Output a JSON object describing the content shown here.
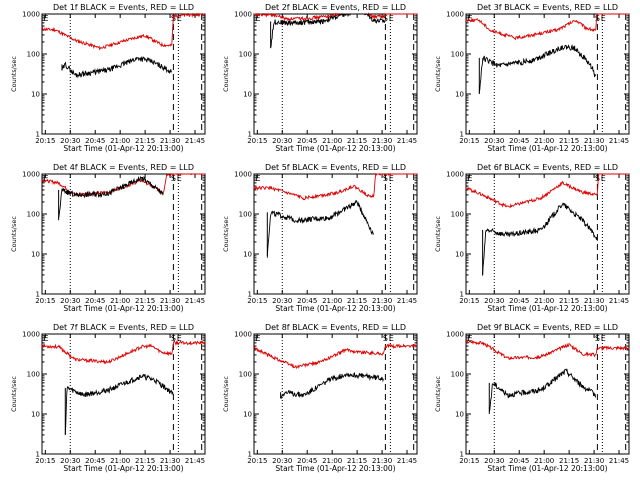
{
  "chart_data": [
    {
      "type": "line",
      "detector": "1f",
      "title": "Det 1f BLACK = Events, RED = LLD",
      "xlabel": "Start Time (01-Apr-12 20:13:00)",
      "ylabel": "Counts/sec",
      "yscale": "log",
      "ylim": [
        1,
        1000
      ],
      "yticks": [
        "1",
        "10",
        "100",
        "1000"
      ],
      "xticks": [
        "20:15",
        "20:30",
        "20:45",
        "21:00",
        "21:15",
        "21:30",
        "21:45"
      ],
      "markers": [
        "S",
        "E"
      ],
      "series": [
        {
          "name": "Events",
          "color": "#000000",
          "x_min": [
            20.4,
            20.5,
            21.0,
            21.25,
            21.33
          ],
          "y": [
            13,
            55,
            30,
            80,
            40
          ]
        },
        {
          "name": "LLD",
          "color": "#dd0000",
          "x_min": [
            0,
            10,
            35,
            60,
            70,
            78,
            80,
            82,
            90
          ],
          "y": [
            420,
            320,
            130,
            280,
            160,
            900,
            1000,
            1000,
            1000
          ]
        }
      ]
    },
    {
      "type": "line",
      "detector": "2f",
      "title": "Det 2f BLACK = Events, RED = LLD",
      "xlabel": "Start Time (01-Apr-12 20:13:00)",
      "ylabel": "Counts/sec",
      "yscale": "log",
      "ylim": [
        1,
        1000
      ],
      "yticks": [
        "1",
        "10",
        "100",
        "1000"
      ],
      "xticks": [
        "20:15",
        "20:30",
        "20:45",
        "21:00",
        "21:15",
        "21:30",
        "21:45"
      ],
      "markers": [
        "S",
        "E"
      ]
    },
    {
      "type": "line",
      "detector": "3f",
      "title": "Det 3f BLACK = Events, RED = LLD",
      "xlabel": "Start Time (01-Apr-12 20:13:00)",
      "ylabel": "Counts/sec",
      "yscale": "log",
      "ylim": [
        1,
        1000
      ],
      "yticks": [
        "1",
        "10",
        "100",
        "1000"
      ],
      "xticks": [
        "20:15",
        "20:30",
        "20:45",
        "21:00",
        "21:15",
        "21:30",
        "21:45"
      ],
      "markers": [
        "S",
        "E"
      ]
    },
    {
      "type": "line",
      "detector": "4f",
      "title": "Det 4f BLACK = Events, RED = LLD",
      "xlabel": "Start Time (01-Apr-12 20:13:00)",
      "ylabel": "Counts/sec",
      "yscale": "log",
      "ylim": [
        1,
        1000
      ],
      "yticks": [
        "1",
        "10",
        "100",
        "1000"
      ],
      "xticks": [
        "20:15",
        "20:30",
        "20:45",
        "21:00",
        "21:15",
        "21:30",
        "21:45"
      ],
      "markers": [
        "S",
        "E"
      ]
    },
    {
      "type": "line",
      "detector": "5f",
      "title": "Det 5f BLACK = Events, RED = LLD",
      "xlabel": "Start Time (01-Apr-12 20:13:00)",
      "ylabel": "Counts/sec",
      "yscale": "log",
      "ylim": [
        1,
        1000
      ],
      "yticks": [
        "1",
        "10",
        "100",
        "1000"
      ],
      "xticks": [
        "20:15",
        "20:30",
        "20:45",
        "21:00",
        "21:15",
        "21:30",
        "21:45"
      ],
      "markers": [
        "S",
        "E"
      ]
    },
    {
      "type": "line",
      "detector": "6f",
      "title": "Det 6f BLACK = Events, RED = LLD",
      "xlabel": "Start Time (01-Apr-12 20:13:00)",
      "ylabel": "Counts/sec",
      "yscale": "log",
      "ylim": [
        1,
        1000
      ],
      "yticks": [
        "1",
        "10",
        "100",
        "1000"
      ],
      "xticks": [
        "20:15",
        "20:30",
        "20:45",
        "21:00",
        "21:15",
        "21:30",
        "21:45"
      ],
      "markers": [
        "S",
        "E"
      ]
    },
    {
      "type": "line",
      "detector": "7f",
      "title": "Det 7f BLACK = Events, RED = LLD",
      "xlabel": "Start Time (01-Apr-12 20:13:00)",
      "ylabel": "Counts/sec",
      "yscale": "log",
      "ylim": [
        1,
        1000
      ],
      "yticks": [
        "1",
        "10",
        "100",
        "1000"
      ],
      "xticks": [
        "20:15",
        "20:30",
        "20:45",
        "21:00",
        "21:15",
        "21:30",
        "21:45"
      ],
      "markers": [
        "S",
        "E"
      ]
    },
    {
      "type": "line",
      "detector": "8f",
      "title": "Det 8f BLACK = Events, RED = LLD",
      "xlabel": "Start Time (01-Apr-12 20:13:00)",
      "ylabel": "Counts/sec",
      "yscale": "log",
      "ylim": [
        1,
        1000
      ],
      "yticks": [
        "1",
        "10",
        "100",
        "1000"
      ],
      "xticks": [
        "20:15",
        "20:30",
        "20:45",
        "21:00",
        "21:15",
        "21:30",
        "21:45"
      ],
      "markers": [
        "S",
        "E"
      ]
    },
    {
      "type": "line",
      "detector": "9f",
      "title": "Det 9f BLACK = Events, RED = LLD",
      "xlabel": "Start Time (01-Apr-12 20:13:00)",
      "ylabel": "Counts/sec",
      "yscale": "log",
      "ylim": [
        1,
        1000
      ],
      "yticks": [
        "1",
        "10",
        "100",
        "1000"
      ],
      "xticks": [
        "20:15",
        "20:30",
        "20:45",
        "21:00",
        "21:15",
        "21:30",
        "21:45"
      ],
      "markers": [
        "S",
        "E"
      ]
    }
  ],
  "legend": {
    "events_color": "#000000",
    "lld_color": "#dd0000"
  }
}
